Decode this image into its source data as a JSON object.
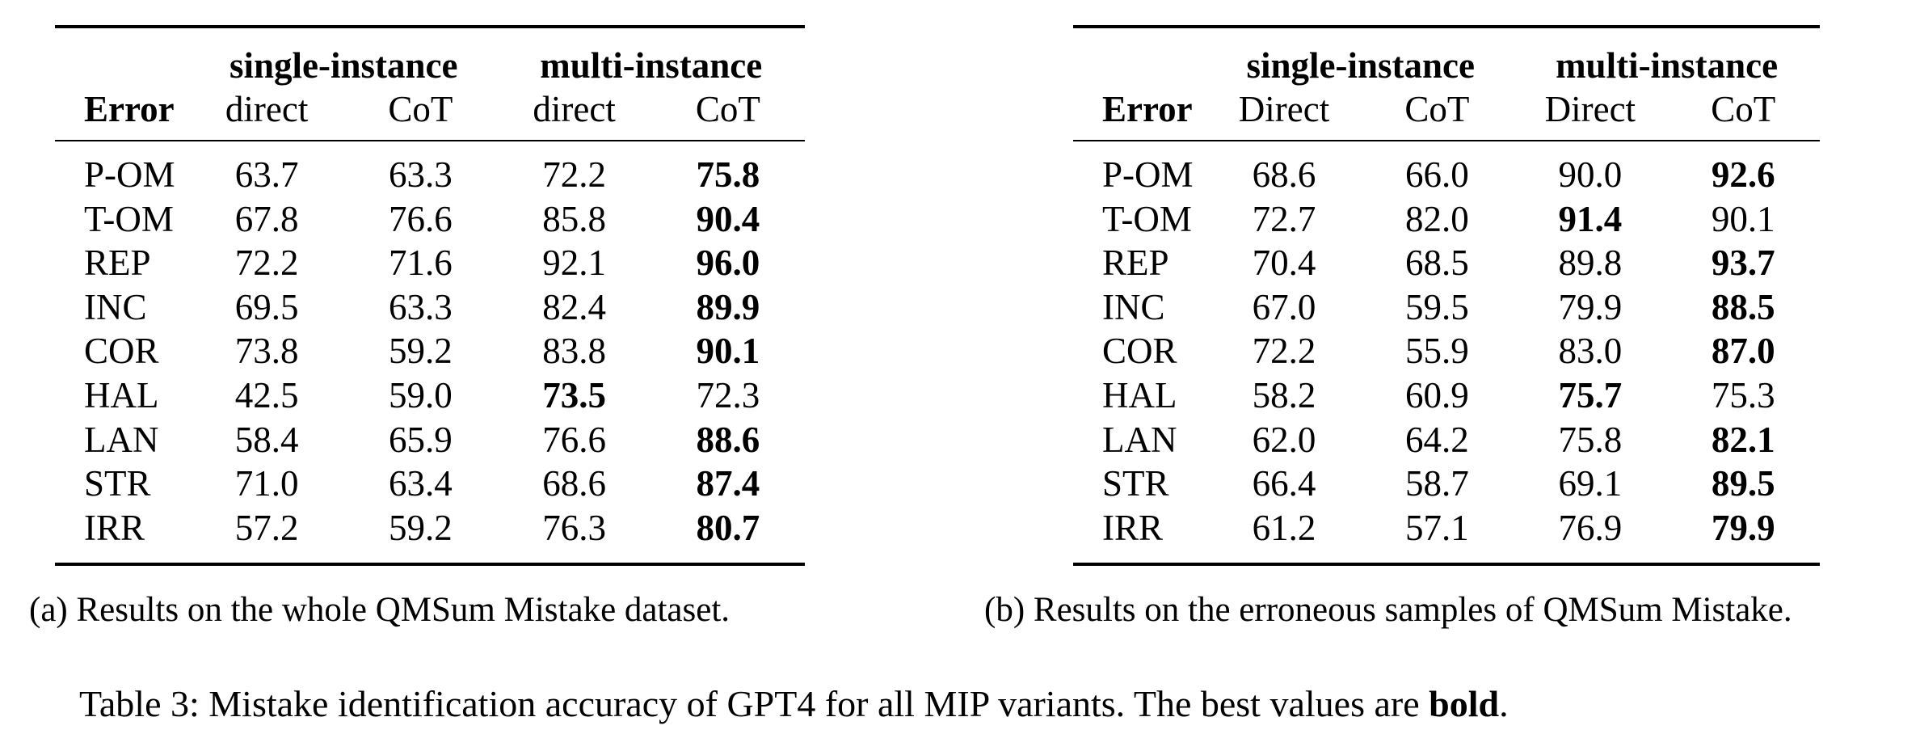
{
  "tables": [
    {
      "group_headers": [
        "single-instance",
        "multi-instance"
      ],
      "error_header": "Error",
      "columns": [
        "direct",
        "CoT",
        "direct",
        "CoT"
      ],
      "rows": [
        {
          "error": "P-OM",
          "values": [
            "63.7",
            "63.3",
            "72.2",
            "75.8"
          ],
          "best": 3
        },
        {
          "error": "T-OM",
          "values": [
            "67.8",
            "76.6",
            "85.8",
            "90.4"
          ],
          "best": 3
        },
        {
          "error": "REP",
          "values": [
            "72.2",
            "71.6",
            "92.1",
            "96.0"
          ],
          "best": 3
        },
        {
          "error": "INC",
          "values": [
            "69.5",
            "63.3",
            "82.4",
            "89.9"
          ],
          "best": 3
        },
        {
          "error": "COR",
          "values": [
            "73.8",
            "59.2",
            "83.8",
            "90.1"
          ],
          "best": 3
        },
        {
          "error": "HAL",
          "values": [
            "42.5",
            "59.0",
            "73.5",
            "72.3"
          ],
          "best": 2
        },
        {
          "error": "LAN",
          "values": [
            "58.4",
            "65.9",
            "76.6",
            "88.6"
          ],
          "best": 3
        },
        {
          "error": "STR",
          "values": [
            "71.0",
            "63.4",
            "68.6",
            "87.4"
          ],
          "best": 3
        },
        {
          "error": "IRR",
          "values": [
            "57.2",
            "59.2",
            "76.3",
            "80.7"
          ],
          "best": 3
        }
      ],
      "caption": "(a) Results on the whole QMSum Mistake dataset."
    },
    {
      "group_headers": [
        "single-instance",
        "multi-instance"
      ],
      "error_header": "Error",
      "columns": [
        "Direct",
        "CoT",
        "Direct",
        "CoT"
      ],
      "rows": [
        {
          "error": "P-OM",
          "values": [
            "68.6",
            "66.0",
            "90.0",
            "92.6"
          ],
          "best": 3
        },
        {
          "error": "T-OM",
          "values": [
            "72.7",
            "82.0",
            "91.4",
            "90.1"
          ],
          "best": 2
        },
        {
          "error": "REP",
          "values": [
            "70.4",
            "68.5",
            "89.8",
            "93.7"
          ],
          "best": 3
        },
        {
          "error": "INC",
          "values": [
            "67.0",
            "59.5",
            "79.9",
            "88.5"
          ],
          "best": 3
        },
        {
          "error": "COR",
          "values": [
            "72.2",
            "55.9",
            "83.0",
            "87.0"
          ],
          "best": 3
        },
        {
          "error": "HAL",
          "values": [
            "58.2",
            "60.9",
            "75.7",
            "75.3"
          ],
          "best": 2
        },
        {
          "error": "LAN",
          "values": [
            "62.0",
            "64.2",
            "75.8",
            "82.1"
          ],
          "best": 3
        },
        {
          "error": "STR",
          "values": [
            "66.4",
            "58.7",
            "69.1",
            "89.5"
          ],
          "best": 3
        },
        {
          "error": "IRR",
          "values": [
            "61.2",
            "57.1",
            "76.9",
            "79.9"
          ],
          "best": 3
        }
      ],
      "caption": "(b) Results on the erroneous samples of QMSum Mistake."
    }
  ],
  "main_caption": {
    "prefix": "Table 3: Mistake identification accuracy of GPT4 for all MIP variants. The best values are ",
    "bold": "bold",
    "suffix": "."
  }
}
